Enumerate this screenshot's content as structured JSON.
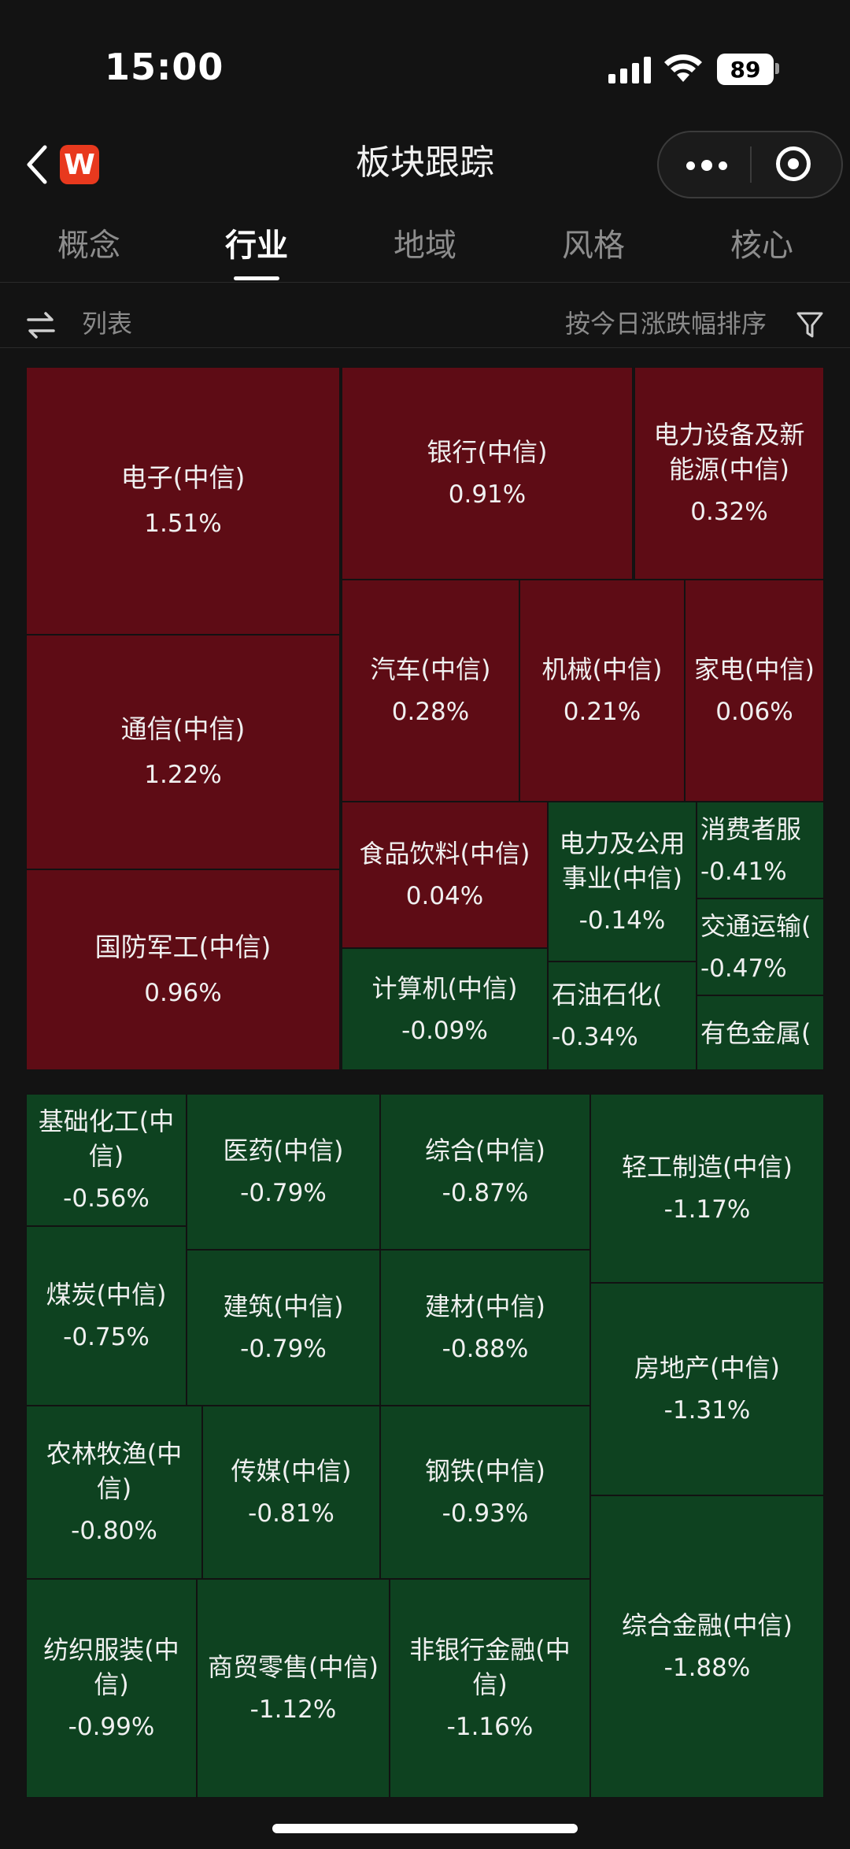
{
  "status_bar": {
    "time": "15:00",
    "battery": "89"
  },
  "header": {
    "title": "板块跟踪",
    "logo_letter": "W"
  },
  "tabs": [
    {
      "label": "概念",
      "active": false
    },
    {
      "label": "行业",
      "active": true
    },
    {
      "label": "地域",
      "active": false
    },
    {
      "label": "风格",
      "active": false
    },
    {
      "label": "核心",
      "active": false
    }
  ],
  "toolbar": {
    "list_label": "列表",
    "sort_label": "按今日涨跌幅排序"
  },
  "colors": {
    "up": "#5e0c15",
    "down": "#0e4220"
  },
  "sectors": [
    {
      "name": "电子(中信)",
      "change": "1.51%",
      "dir": "up"
    },
    {
      "name": "银行(中信)",
      "change": "0.91%",
      "dir": "up"
    },
    {
      "name": "电力设备及新能源(中信)",
      "change": "0.32%",
      "dir": "up"
    },
    {
      "name": "通信(中信)",
      "change": "1.22%",
      "dir": "up"
    },
    {
      "name": "汽车(中信)",
      "change": "0.28%",
      "dir": "up"
    },
    {
      "name": "机械(中信)",
      "change": "0.21%",
      "dir": "up"
    },
    {
      "name": "家电(中信)",
      "change": "0.06%",
      "dir": "up"
    },
    {
      "name": "国防军工(中信)",
      "change": "0.96%",
      "dir": "up"
    },
    {
      "name": "食品饮料(中信)",
      "change": "0.04%",
      "dir": "up"
    },
    {
      "name": "电力及公用事业(中信)",
      "change": "-0.14%",
      "dir": "down"
    },
    {
      "name": "消费者服",
      "change": "-0.41%",
      "dir": "down"
    },
    {
      "name": "交通运输(",
      "change": "-0.47%",
      "dir": "down"
    },
    {
      "name": "计算机(中信)",
      "change": "-0.09%",
      "dir": "down"
    },
    {
      "name": "石油石化(",
      "change": "-0.34%",
      "dir": "down"
    },
    {
      "name": "有色金属(",
      "change": "",
      "dir": "down"
    },
    {
      "name": "基础化工(中信)",
      "change": "-0.56%",
      "dir": "down"
    },
    {
      "name": "医药(中信)",
      "change": "-0.79%",
      "dir": "down"
    },
    {
      "name": "综合(中信)",
      "change": "-0.87%",
      "dir": "down"
    },
    {
      "name": "轻工制造(中信)",
      "change": "-1.17%",
      "dir": "down"
    },
    {
      "name": "煤炭(中信)",
      "change": "-0.75%",
      "dir": "down"
    },
    {
      "name": "建筑(中信)",
      "change": "-0.79%",
      "dir": "down"
    },
    {
      "name": "建材(中信)",
      "change": "-0.88%",
      "dir": "down"
    },
    {
      "name": "房地产(中信)",
      "change": "-1.31%",
      "dir": "down"
    },
    {
      "name": "农林牧渔(中信)",
      "change": "-0.80%",
      "dir": "down"
    },
    {
      "name": "传媒(中信)",
      "change": "-0.81%",
      "dir": "down"
    },
    {
      "name": "钢铁(中信)",
      "change": "-0.93%",
      "dir": "down"
    },
    {
      "name": "纺织服装(中信)",
      "change": "-0.99%",
      "dir": "down"
    },
    {
      "name": "商贸零售(中信)",
      "change": "-1.12%",
      "dir": "down"
    },
    {
      "name": "非银行金融(中信)",
      "change": "-1.16%",
      "dir": "down"
    },
    {
      "name": "综合金融(中信)",
      "change": "-1.88%",
      "dir": "down"
    }
  ]
}
